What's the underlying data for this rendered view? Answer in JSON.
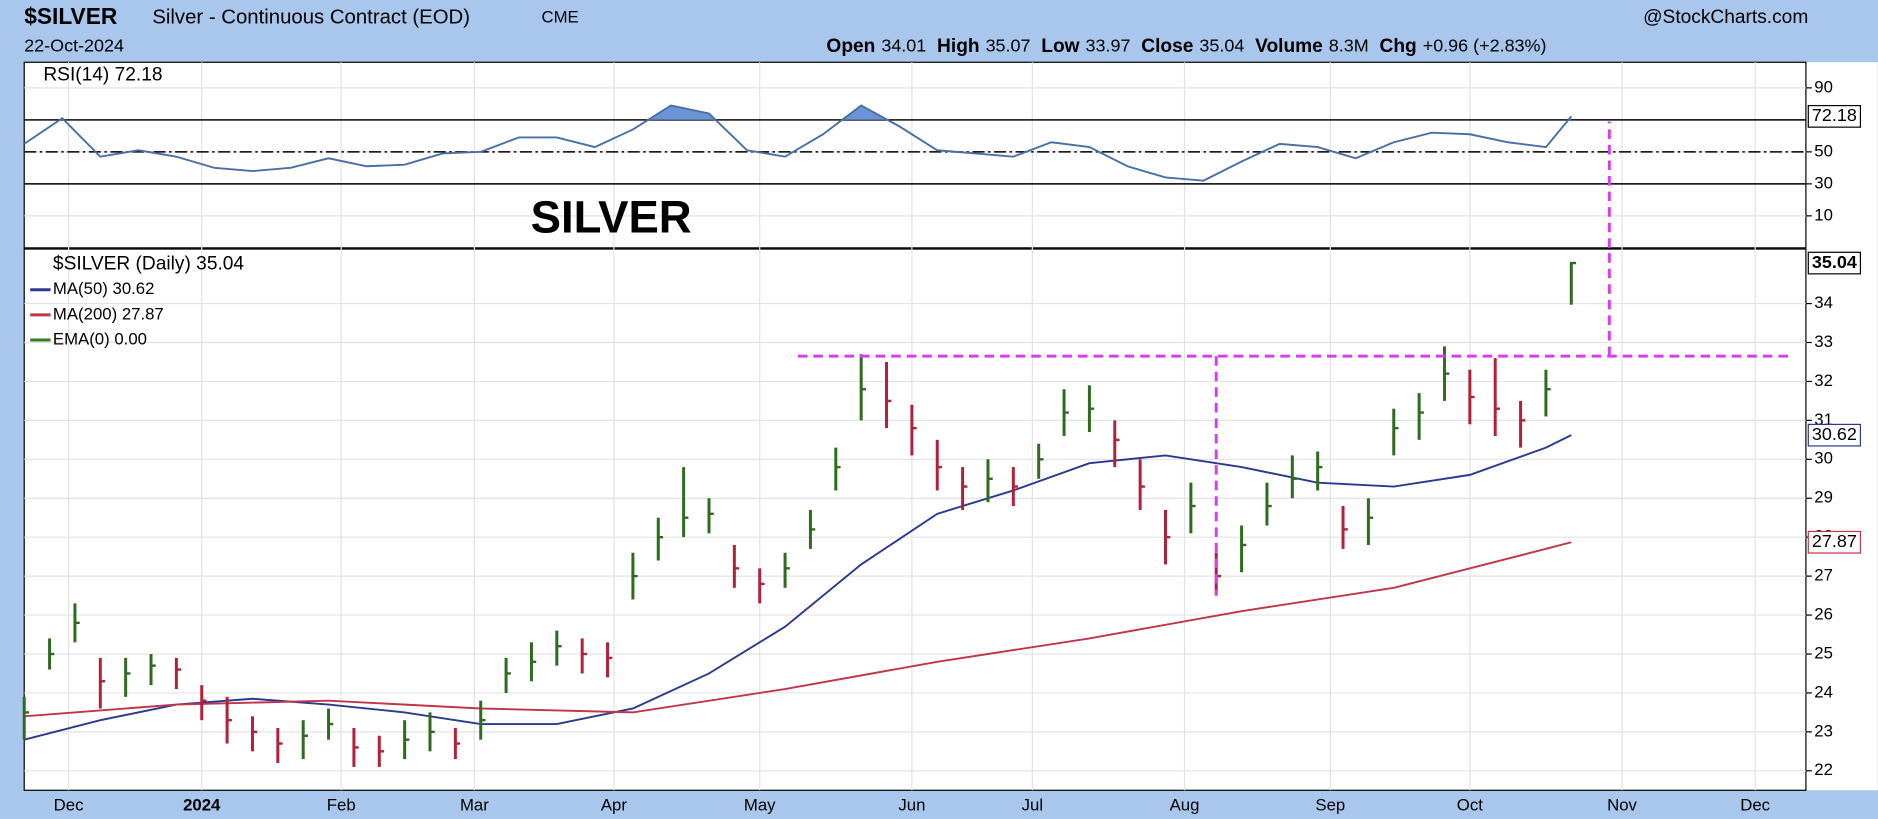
{
  "header": {
    "symbol": "$SILVER",
    "name": "Silver - Continuous Contract (EOD)",
    "exchange": "CME",
    "brand": "@StockCharts.com",
    "date": "22-Oct-2024",
    "stats": [
      {
        "label": "Open",
        "value": "34.01"
      },
      {
        "label": "High",
        "value": "35.07"
      },
      {
        "label": "Low",
        "value": "33.97"
      },
      {
        "label": "Close",
        "value": "35.04"
      },
      {
        "label": "Volume",
        "value": "8.3M"
      },
      {
        "label": "Chg",
        "value": "+0.96 (+2.83%)"
      }
    ]
  },
  "chart_data": [
    {
      "type": "line",
      "legend": "RSI(14) 72.18",
      "annotation": "SILVER",
      "color": "#4a6fa5",
      "fill_above": 70,
      "fill_color": "#6b93d6",
      "x": [
        0,
        6,
        12,
        18,
        24,
        30,
        36,
        42,
        48,
        54,
        60,
        66,
        72,
        78,
        84,
        90,
        96,
        102,
        108,
        114,
        120,
        126,
        132,
        138,
        144,
        150,
        156,
        162,
        168,
        174,
        180,
        186,
        192,
        198,
        204,
        210,
        216,
        222,
        228,
        234,
        240,
        244
      ],
      "values": [
        55,
        71,
        47,
        51,
        47,
        40,
        38,
        40,
        46,
        41,
        42,
        49,
        50,
        59,
        59,
        53,
        64,
        79,
        74,
        51,
        47,
        61,
        79,
        66,
        51,
        49,
        47,
        56,
        53,
        41,
        34,
        32,
        44,
        55,
        53,
        46,
        56,
        62,
        61,
        56,
        53,
        72.18
      ],
      "xlim": [
        0,
        281
      ],
      "ylim": [
        -10,
        106
      ],
      "yticks": [
        10,
        30,
        50,
        90
      ],
      "levels": [
        30,
        50,
        70
      ],
      "trendlines": [
        {
          "x": [
            250,
            250
          ],
          "y": [
            -10,
            69
          ]
        }
      ]
    },
    {
      "type": "ohlc",
      "legend": "$SILVER (Daily) 35.04",
      "up_color": "#2f6b1f",
      "down_color": "#b3203a",
      "x": [
        0,
        4,
        8,
        12,
        16,
        20,
        24,
        28,
        32,
        36,
        40,
        44,
        48,
        52,
        56,
        60,
        64,
        68,
        72,
        76,
        80,
        84,
        88,
        92,
        96,
        100,
        104,
        108,
        112,
        116,
        120,
        124,
        128,
        132,
        136,
        140,
        144,
        148,
        152,
        156,
        160,
        164,
        168,
        172,
        176,
        180,
        184,
        188,
        192,
        196,
        200,
        204,
        208,
        212,
        216,
        220,
        224,
        228,
        232,
        236,
        240,
        244
      ],
      "high": [
        23.9,
        25.4,
        26.3,
        24.9,
        24.9,
        25.0,
        24.9,
        24.2,
        23.9,
        23.4,
        23.1,
        23.3,
        23.6,
        23.1,
        22.9,
        23.3,
        23.5,
        23.1,
        23.8,
        24.9,
        25.3,
        25.6,
        25.4,
        25.3,
        27.6,
        28.5,
        29.8,
        29.0,
        27.8,
        27.2,
        27.6,
        28.7,
        30.3,
        32.7,
        32.5,
        31.4,
        30.5,
        29.8,
        30.0,
        29.8,
        30.4,
        31.8,
        31.9,
        31.0,
        30.0,
        28.7,
        29.4,
        27.6,
        28.3,
        29.4,
        30.1,
        30.2,
        28.8,
        29.0,
        31.3,
        31.7,
        32.9,
        32.3,
        32.6,
        31.5,
        32.3,
        35.07
      ],
      "low": [
        22.8,
        24.6,
        25.3,
        23.6,
        23.9,
        24.2,
        24.1,
        23.3,
        22.7,
        22.5,
        22.2,
        22.3,
        22.8,
        22.1,
        22.1,
        22.3,
        22.5,
        22.3,
        22.8,
        24.0,
        24.3,
        24.7,
        24.5,
        24.4,
        26.4,
        27.4,
        28.0,
        28.1,
        26.7,
        26.3,
        26.7,
        27.7,
        29.2,
        31.0,
        30.8,
        30.1,
        29.2,
        28.7,
        28.9,
        28.8,
        29.5,
        30.6,
        30.7,
        29.8,
        28.7,
        27.3,
        28.1,
        26.5,
        27.1,
        28.3,
        29.0,
        29.2,
        27.7,
        27.8,
        30.1,
        30.5,
        31.5,
        30.9,
        30.6,
        30.3,
        31.1,
        33.97
      ],
      "close": [
        23.5,
        25.0,
        25.8,
        24.3,
        24.5,
        24.7,
        24.6,
        23.8,
        23.3,
        23.0,
        22.7,
        22.9,
        23.2,
        22.6,
        22.5,
        22.8,
        23.0,
        22.7,
        23.3,
        24.5,
        24.8,
        25.2,
        25.0,
        24.9,
        27.0,
        28.0,
        28.5,
        28.6,
        27.2,
        26.8,
        27.2,
        28.2,
        29.8,
        31.8,
        31.5,
        30.8,
        29.8,
        29.3,
        29.5,
        29.3,
        30.0,
        31.2,
        31.3,
        30.5,
        29.3,
        28.0,
        28.8,
        27.0,
        27.8,
        28.8,
        29.5,
        29.8,
        28.2,
        28.5,
        30.8,
        31.2,
        32.2,
        31.6,
        31.3,
        31.0,
        31.8,
        35.04
      ],
      "series": [
        {
          "name": "MA(50) 30.62",
          "color": "#2b3990",
          "x": [
            0,
            12,
            24,
            36,
            48,
            60,
            72,
            84,
            96,
            108,
            120,
            132,
            144,
            156,
            168,
            180,
            192,
            204,
            216,
            228,
            240,
            244
          ],
          "values": [
            22.8,
            23.3,
            23.7,
            23.85,
            23.7,
            23.5,
            23.2,
            23.2,
            23.6,
            24.5,
            25.7,
            27.3,
            28.6,
            29.2,
            29.9,
            30.1,
            29.8,
            29.4,
            29.3,
            29.6,
            30.3,
            30.62
          ]
        },
        {
          "name": "MA(200) 27.87",
          "color": "#c0354a",
          "x": [
            0,
            24,
            48,
            72,
            96,
            120,
            144,
            168,
            192,
            216,
            240,
            244
          ],
          "values": [
            23.4,
            23.7,
            23.8,
            23.6,
            23.5,
            24.1,
            24.8,
            25.4,
            26.1,
            26.7,
            27.7,
            27.87
          ]
        },
        {
          "name": "EMA(0) 0.00",
          "color": "#3a7a25",
          "x": [],
          "values": []
        }
      ],
      "xlim": [
        0,
        281
      ],
      "ylim": [
        21.5,
        35.4
      ],
      "yticks": [
        22,
        23,
        24,
        25,
        26,
        27,
        28,
        29,
        30,
        31,
        32,
        33,
        34
      ],
      "xticks": [
        {
          "value": 7,
          "label": "Dec"
        },
        {
          "value": 28,
          "label": "2024"
        },
        {
          "value": 50,
          "label": "Feb"
        },
        {
          "value": 71,
          "label": "Mar"
        },
        {
          "value": 93,
          "label": "Apr"
        },
        {
          "value": 116,
          "label": "May"
        },
        {
          "value": 140,
          "label": "Jun"
        },
        {
          "value": 159,
          "label": "Jul"
        },
        {
          "value": 183,
          "label": "Aug"
        },
        {
          "value": 206,
          "label": "Sep"
        },
        {
          "value": 228,
          "label": "Oct"
        },
        {
          "value": 252,
          "label": "Nov"
        },
        {
          "value": 273,
          "label": "Dec"
        }
      ],
      "trendline_color": "#d63ff0",
      "trendlines": [
        {
          "x": [
            122,
            279
          ],
          "y": [
            32.65,
            32.65
          ]
        },
        {
          "x": [
            188,
            188
          ],
          "y": [
            32.65,
            26.5
          ]
        },
        {
          "x": [
            250,
            250
          ],
          "y": [
            32.65,
            35.4
          ]
        }
      ]
    }
  ]
}
